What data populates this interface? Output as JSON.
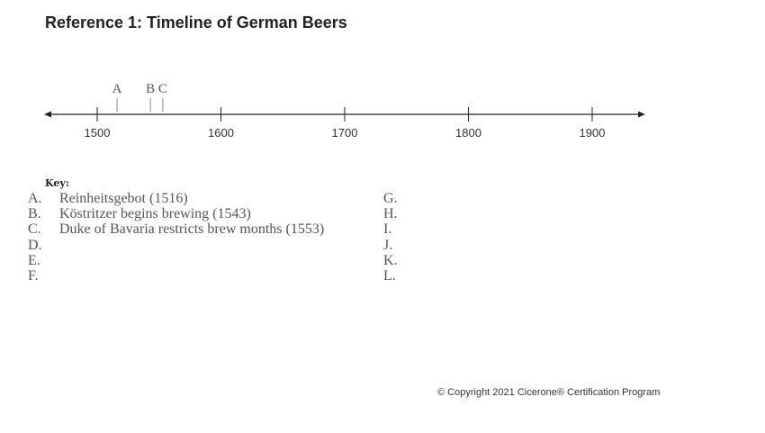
{
  "title": "Reference 1: Timeline of German Beers",
  "timeline": {
    "axis_min": 1500,
    "axis_max": 1900,
    "ticks": [
      1500,
      1600,
      1700,
      1800,
      1900
    ],
    "tick_labels": [
      "1500",
      "1600",
      "1700",
      "1800",
      "1900"
    ],
    "markers": [
      {
        "letter": "A",
        "year": 1516
      },
      {
        "letter": "B",
        "year": 1543
      },
      {
        "letter": "C",
        "year": 1553
      }
    ],
    "line_color": "#222222",
    "marker_color": "#888888"
  },
  "key": {
    "title": "Key:",
    "left": [
      {
        "letter": "A.",
        "text": "Reinheitsgebot (1516)"
      },
      {
        "letter": "B.",
        "text": "Köstritzer begins brewing (1543)"
      },
      {
        "letter": "C.",
        "text": "Duke of Bavaria restricts brew months (1553)"
      },
      {
        "letter": "D.",
        "text": ""
      },
      {
        "letter": "E.",
        "text": ""
      },
      {
        "letter": "F.",
        "text": ""
      }
    ],
    "right": [
      {
        "letter": "G.",
        "text": ""
      },
      {
        "letter": "H.",
        "text": ""
      },
      {
        "letter": "I.",
        "text": ""
      },
      {
        "letter": "J.",
        "text": ""
      },
      {
        "letter": "K.",
        "text": ""
      },
      {
        "letter": "L.",
        "text": ""
      }
    ]
  },
  "copyright": "© Copyright 2021 Cicerone® Certification Program"
}
